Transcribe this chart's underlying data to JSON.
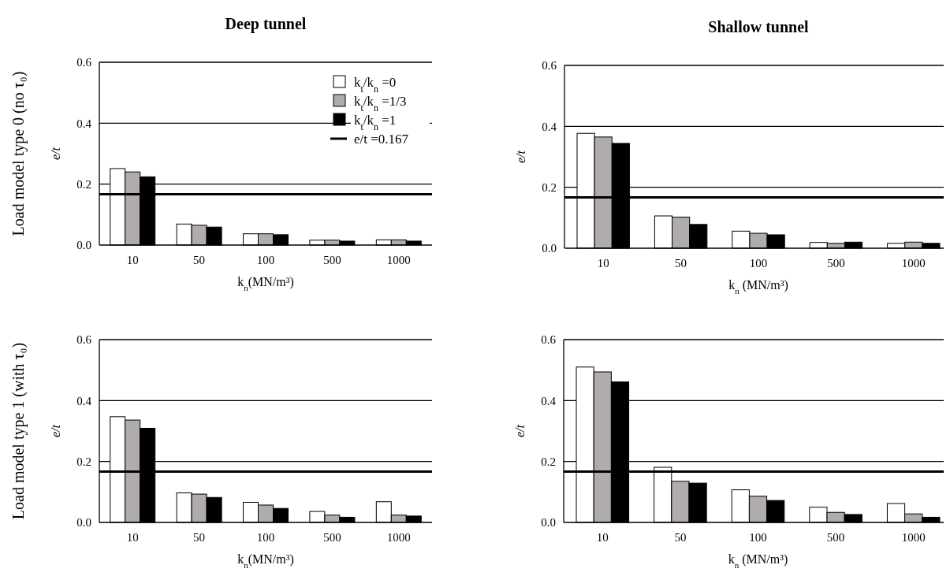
{
  "chart_data": [
    {
      "type": "bar",
      "title": "Deep tunnel",
      "xlabel": "k$_{n}$(MN/m³)",
      "ylabel": "e/t",
      "annotations": [
        "Load model type 0 (no τ₀)"
      ],
      "categories": [
        "10",
        "50",
        "100",
        "500",
        "1000"
      ],
      "ylim": [
        0,
        0.6
      ],
      "yticks": [
        {
          "value": 0,
          "label": "0.0"
        },
        {
          "value": 0.2,
          "label": "0.2"
        },
        {
          "value": 0.4,
          "label": "0.4"
        },
        {
          "value": 0.6,
          "label": "0.6"
        }
      ],
      "grid": "y",
      "legend": "top right",
      "ref_lines": [
        {
          "axis": "y",
          "value": 0.167,
          "label": "e/t =0.167",
          "color": "#000000"
        }
      ],
      "series": [
        {
          "name": "k$_{t}$/k$_{n}$ =0",
          "color": "#ffffff",
          "values": [
            0.251,
            0.069,
            0.037,
            0.016,
            0.017
          ]
        },
        {
          "name": "k$_{t}$/k$_{n}$ =1/3",
          "color": "#b0acab",
          "values": [
            0.24,
            0.065,
            0.037,
            0.016,
            0.017
          ]
        },
        {
          "name": "k$_{t}$/k$_{n}$ =1",
          "color": "#000000",
          "values": [
            0.224,
            0.059,
            0.034,
            0.013,
            0.013
          ]
        }
      ]
    },
    {
      "type": "bar",
      "title": "Shallow tunnel",
      "xlabel": "k$_{n}$ (MN/m³)",
      "ylabel": "e/t",
      "categories": [
        "10",
        "50",
        "100",
        "500",
        "1000"
      ],
      "ylim": [
        0,
        0.6
      ],
      "yticks": [
        {
          "value": 0,
          "label": "0.0"
        },
        {
          "value": 0.2,
          "label": "0.2"
        },
        {
          "value": 0.4,
          "label": "0.4"
        },
        {
          "value": 0.6,
          "label": "0.6"
        }
      ],
      "grid": "y",
      "ref_lines": [
        {
          "axis": "y",
          "value": 0.167,
          "color": "#000000"
        }
      ],
      "series": [
        {
          "color": "#ffffff",
          "values": [
            0.377,
            0.106,
            0.056,
            0.019,
            0.016
          ]
        },
        {
          "color": "#b0acab",
          "values": [
            0.365,
            0.102,
            0.049,
            0.016,
            0.02
          ]
        },
        {
          "color": "#000000",
          "values": [
            0.344,
            0.078,
            0.044,
            0.02,
            0.016
          ]
        }
      ]
    },
    {
      "type": "bar",
      "xlabel": "k$_{n}$(MN/m³)",
      "ylabel": "e/t",
      "annotations": [
        "Load model type 1 (with τ₀)"
      ],
      "categories": [
        "10",
        "50",
        "100",
        "500",
        "1000"
      ],
      "ylim": [
        0,
        0.6
      ],
      "yticks": [
        {
          "value": 0,
          "label": "0.0"
        },
        {
          "value": 0.2,
          "label": "0.2"
        },
        {
          "value": 0.4,
          "label": "0.4"
        },
        {
          "value": 0.6,
          "label": "0.6"
        }
      ],
      "grid": "y",
      "ref_lines": [
        {
          "axis": "y",
          "value": 0.167,
          "color": "#000000"
        }
      ],
      "series": [
        {
          "color": "#ffffff",
          "values": [
            0.347,
            0.097,
            0.066,
            0.036,
            0.068
          ]
        },
        {
          "color": "#b0acab",
          "values": [
            0.336,
            0.093,
            0.057,
            0.024,
            0.024
          ]
        },
        {
          "color": "#000000",
          "values": [
            0.309,
            0.082,
            0.046,
            0.017,
            0.021
          ]
        }
      ]
    },
    {
      "type": "bar",
      "xlabel": "k$_{n}$ (MN/m³)",
      "ylabel": "e/t",
      "categories": [
        "10",
        "50",
        "100",
        "500",
        "1000"
      ],
      "ylim": [
        0,
        0.6
      ],
      "yticks": [
        {
          "value": 0,
          "label": "0.0"
        },
        {
          "value": 0.2,
          "label": "0.2"
        },
        {
          "value": 0.4,
          "label": "0.4"
        },
        {
          "value": 0.6,
          "label": "0.6"
        }
      ],
      "grid": "y",
      "ref_lines": [
        {
          "axis": "y",
          "value": 0.167,
          "color": "#000000"
        }
      ],
      "series": [
        {
          "color": "#ffffff",
          "values": [
            0.51,
            0.181,
            0.107,
            0.05,
            0.062
          ]
        },
        {
          "color": "#b0acab",
          "values": [
            0.494,
            0.135,
            0.086,
            0.033,
            0.028
          ]
        },
        {
          "color": "#000000",
          "values": [
            0.461,
            0.129,
            0.072,
            0.026,
            0.017
          ]
        }
      ]
    }
  ]
}
